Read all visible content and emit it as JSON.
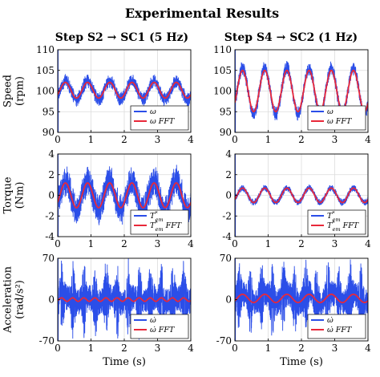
{
  "figure": {
    "title": "Experimental Results",
    "column_titles": [
      "Step S2 → SC1 (5 Hz)",
      "Step S4 → SC2 (1 Hz)"
    ],
    "colors": {
      "measured": "#2b4ee8",
      "fft": "#e8283a"
    }
  },
  "chart_data": [
    {
      "type": "line",
      "panel": "speed-left",
      "ylabel": "Speed (rpm)",
      "xlabel": "",
      "xlim": [
        0,
        4
      ],
      "ylim": [
        90,
        110
      ],
      "xticks": [
        0,
        1,
        2,
        3,
        4
      ],
      "yticks": [
        90,
        95,
        100,
        105,
        110
      ],
      "xtick_labels": [
        "0",
        "1",
        "2",
        "3",
        "4"
      ],
      "ytick_labels": [
        "90",
        "95",
        "100",
        "105",
        "110"
      ],
      "grid": true,
      "legend_position": "bottom-right",
      "series": [
        {
          "name": "ω",
          "kind": "noisy",
          "offset": 100.2,
          "amp": 2.2,
          "freq": 1.5,
          "noise": 1.8
        },
        {
          "name": "ω FFT",
          "kind": "smooth",
          "offset": 100.2,
          "amp": 1.9,
          "freq": 1.5
        }
      ]
    },
    {
      "type": "line",
      "panel": "speed-right",
      "ylabel": "",
      "xlabel": "",
      "xlim": [
        0,
        4
      ],
      "ylim": [
        90,
        110
      ],
      "xticks": [
        0,
        1,
        2,
        3,
        4
      ],
      "yticks": [
        90,
        95,
        100,
        105,
        110
      ],
      "xtick_labels": [
        "0",
        "1",
        "2",
        "3",
        "4"
      ],
      "ytick_labels": [
        "90",
        "95",
        "100",
        "105",
        "110"
      ],
      "grid": true,
      "legend_position": "bottom-right",
      "series": [
        {
          "name": "ω",
          "kind": "noisy",
          "offset": 100,
          "amp": 5.5,
          "freq": 1.5,
          "noise": 1.8
        },
        {
          "name": "ω FFT",
          "kind": "smooth",
          "offset": 100,
          "amp": 5.0,
          "freq": 1.5
        }
      ]
    },
    {
      "type": "line",
      "panel": "torque-left",
      "ylabel": "Torque (Nm)",
      "xlabel": "",
      "xlim": [
        0,
        4
      ],
      "ylim": [
        -4,
        4
      ],
      "xticks": [
        0,
        1,
        2,
        3,
        4
      ],
      "yticks": [
        -4,
        -2,
        0,
        2,
        4
      ],
      "xtick_labels": [
        "0",
        "1",
        "2",
        "3",
        "4"
      ],
      "ytick_labels": [
        "-4",
        "-2",
        "0",
        "2",
        "4"
      ],
      "grid": true,
      "legend_position": "bottom-right",
      "series": [
        {
          "name": "T*em",
          "kind": "noisy",
          "offset": 0,
          "amp": 1.4,
          "freq": 1.5,
          "noise": 1.6
        },
        {
          "name": "T*em FFT",
          "kind": "smooth",
          "offset": 0,
          "amp": 1.2,
          "freq": 1.5
        }
      ]
    },
    {
      "type": "line",
      "panel": "torque-right",
      "ylabel": "",
      "xlabel": "",
      "xlim": [
        0,
        4
      ],
      "ylim": [
        -4,
        4
      ],
      "xticks": [
        0,
        1,
        2,
        3,
        4
      ],
      "yticks": [
        -4,
        -2,
        0,
        2,
        4
      ],
      "xtick_labels": [
        "0",
        "1",
        "2",
        "3",
        "4"
      ],
      "ytick_labels": [
        "-4",
        "-2",
        "0",
        "2",
        "4"
      ],
      "grid": true,
      "legend_position": "bottom-right",
      "series": [
        {
          "name": "T*em",
          "kind": "noisy",
          "offset": 0,
          "amp": 0.7,
          "freq": 1.5,
          "noise": 0.35
        },
        {
          "name": "T*em FFT",
          "kind": "smooth",
          "offset": 0,
          "amp": 0.7,
          "freq": 1.5
        }
      ]
    },
    {
      "type": "line",
      "panel": "accel-left",
      "ylabel": "Acceleration (rad/s²)",
      "xlabel": "Time (s)",
      "xlim": [
        0,
        4
      ],
      "ylim": [
        -70,
        70
      ],
      "xticks": [
        0,
        1,
        2,
        3,
        4
      ],
      "yticks": [
        -70,
        0,
        70
      ],
      "xtick_labels": [
        "0",
        "1",
        "2",
        "3",
        "4"
      ],
      "ytick_labels": [
        "-70",
        "0",
        "70"
      ],
      "grid": true,
      "legend_position": "bottom-right",
      "series": [
        {
          "name": "ω̇",
          "kind": "spiky",
          "offset": 0,
          "amp": 4,
          "freq": 1.5,
          "noise": 22,
          "spike": 48
        },
        {
          "name": "ω̇ FFT",
          "kind": "smooth",
          "offset": 0,
          "amp": 3,
          "freq": 3
        }
      ]
    },
    {
      "type": "line",
      "panel": "accel-right",
      "ylabel": "",
      "xlabel": "Time (s)",
      "xlim": [
        0,
        4
      ],
      "ylim": [
        -70,
        70
      ],
      "xticks": [
        0,
        1,
        2,
        3,
        4
      ],
      "yticks": [
        -70,
        0,
        70
      ],
      "xtick_labels": [
        "0",
        "1",
        "2",
        "3",
        "4"
      ],
      "ytick_labels": [
        "-70",
        "0",
        "70"
      ],
      "grid": true,
      "legend_position": "bottom-right",
      "series": [
        {
          "name": "ω̇",
          "kind": "spiky",
          "offset": 2,
          "amp": 8,
          "freq": 1.5,
          "noise": 22,
          "spike": 42
        },
        {
          "name": "ω̇ FFT",
          "kind": "smooth",
          "offset": 2,
          "amp": 7,
          "freq": 1.5
        }
      ]
    }
  ]
}
